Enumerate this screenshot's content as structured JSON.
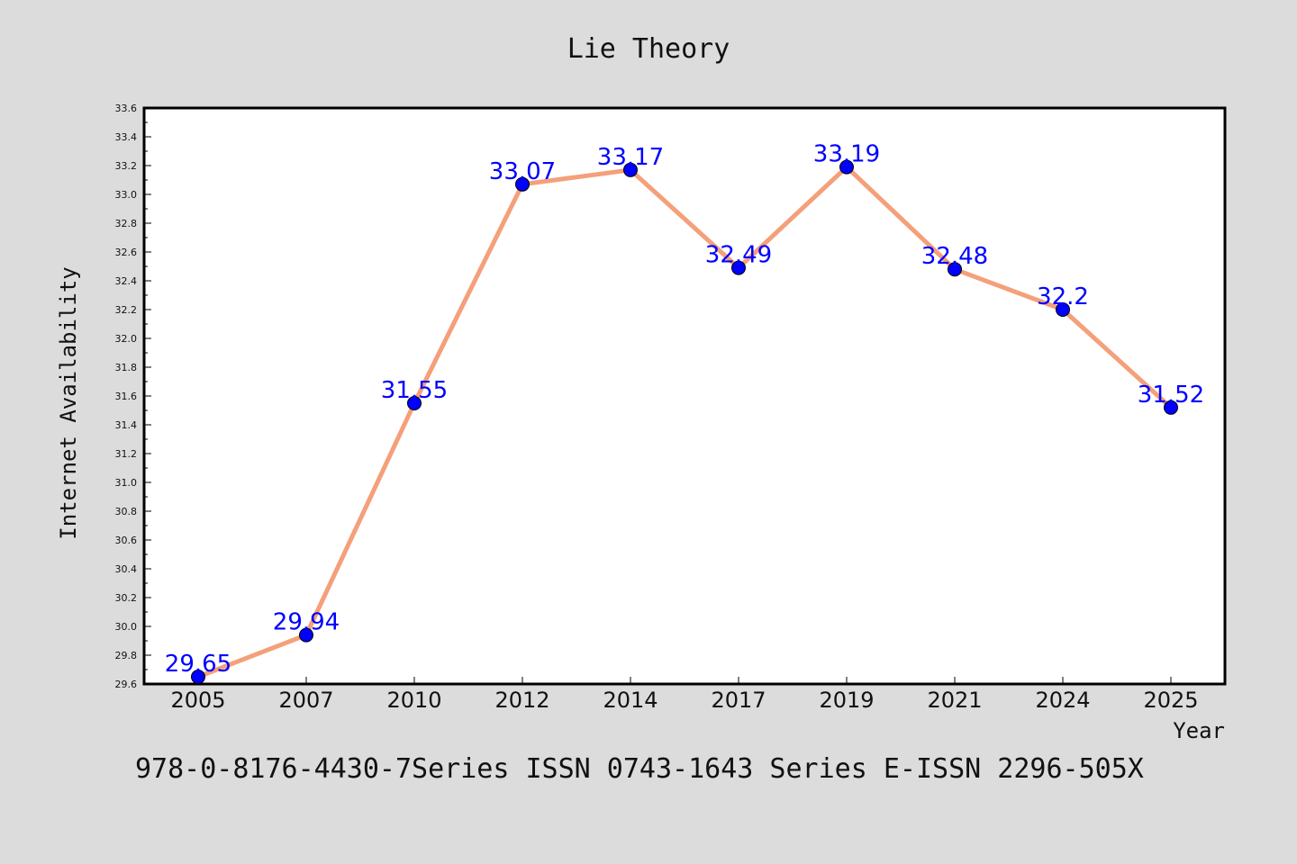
{
  "chart_data": {
    "type": "line",
    "title": "Lie Theory",
    "xlabel": "Year",
    "ylabel": "Internet Availability",
    "categories": [
      "2005",
      "2007",
      "2010",
      "2012",
      "2014",
      "2017",
      "2019",
      "2021",
      "2024",
      "2025"
    ],
    "series": [
      {
        "values": [
          29.65,
          29.94,
          31.55,
          33.07,
          33.17,
          32.49,
          33.19,
          32.48,
          32.2,
          31.52
        ],
        "data_labels": [
          "29.65",
          "29.94",
          "31.55",
          "33.07",
          "33.17",
          "32.49",
          "33.19",
          "32.48",
          "32.2",
          "31.52"
        ]
      }
    ],
    "ylim": [
      29.6,
      33.6
    ],
    "yticks": [
      "29.6",
      "29.8",
      "30.0",
      "30.2",
      "30.4",
      "30.6",
      "30.8",
      "31.0",
      "31.2",
      "31.4",
      "31.6",
      "31.8",
      "32.0",
      "32.2",
      "32.4",
      "32.6",
      "32.8",
      "33.0",
      "33.2",
      "33.4",
      "33.6"
    ],
    "grid": false,
    "legend": "none",
    "colors": {
      "background": "#dcdcdc",
      "plot_background": "#ffffff",
      "line": "#f4a07a",
      "marker": "#0000ff",
      "data_label": "#0000ff"
    }
  },
  "footer": {
    "text": "978-0-8176-4430-7Series ISSN 0743-1643 Series E-ISSN 2296-505X"
  }
}
